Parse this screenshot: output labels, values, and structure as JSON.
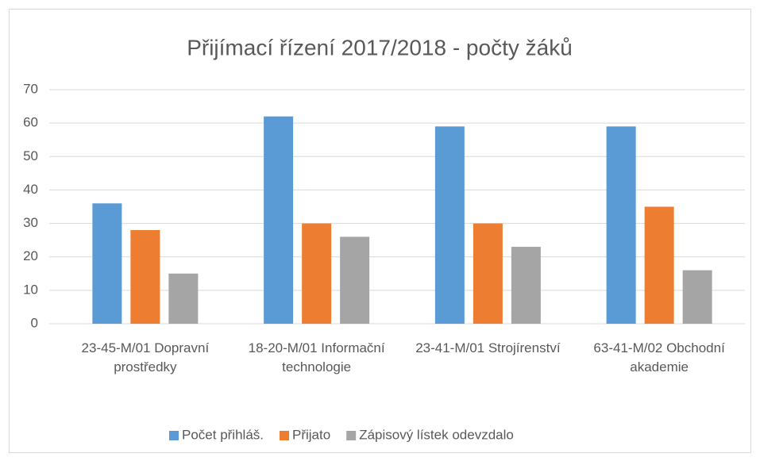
{
  "chart_data": {
    "type": "bar",
    "title": "Přijímací řízení 2017/2018 - počty žáků",
    "categories": [
      "23-45-M/01 Dopravní prostředky",
      "18-20-M/01 Informační technologie",
      "23-41-M/01 Strojírenství",
      "63-41-M/02 Obchodní akademie"
    ],
    "series": [
      {
        "name": "Počet přihláš.",
        "color": "#5b9bd5",
        "values": [
          36,
          62,
          59,
          59
        ]
      },
      {
        "name": "Přijato",
        "color": "#ed7d31",
        "values": [
          28,
          30,
          30,
          35
        ]
      },
      {
        "name": "Zápisový lístek odevzdalo",
        "color": "#a5a5a5",
        "values": [
          15,
          26,
          23,
          16
        ]
      }
    ],
    "ylim": [
      0,
      70
    ],
    "yticks": [
      0,
      10,
      20,
      30,
      40,
      50,
      60,
      70
    ],
    "grid": true,
    "legend": "bottom"
  }
}
